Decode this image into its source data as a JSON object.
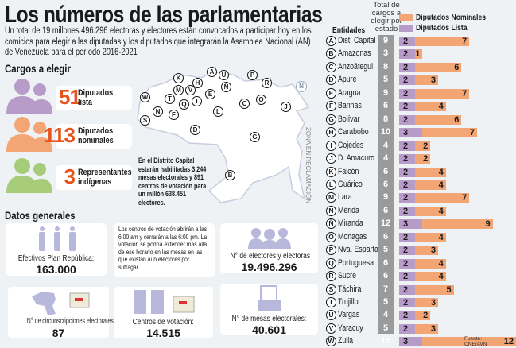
{
  "title": "Los números de las parlamentarias",
  "intro": "Un total de 19 millones 496.296 electoras y electores están convocados a participar hoy en los comicios para elegir a las diputadas y los diputados que integrarán la Asamblea Nacional (AN) de Venezuela para el período 2016-2021",
  "cargos": {
    "heading": "Cargos a elegir",
    "items": [
      {
        "value": "51",
        "label1": "Diputados",
        "label2": "lista",
        "color": "#b79cc9"
      },
      {
        "value": "113",
        "label1": "Diputados",
        "label2": "nominales",
        "color": "#f3a574"
      },
      {
        "value": "3",
        "label1": "Representantes",
        "label2": "indígenas",
        "color": "#a6cc7a"
      }
    ]
  },
  "map": {
    "note": "En el Distrito Capital estarán habilitadas 3.244 mesas electorales y 891 centros de votación para un millón 638.451 electores.",
    "zone": "ZONA EN RECLAMACIÓN",
    "compass": "N"
  },
  "datos": {
    "heading": "Datos generales",
    "efectivos_label": "Efectivos Plan República:",
    "efectivos_value": "163.000",
    "horario": "Los centros de votación abrirán a las 6:00 am y cerrarán a las 6:00 pm. La votación se podría extender más allá de ese horario en las mesas en las que existan aún electores por sufragar.",
    "electores_label": "N° de electores y electoras",
    "electores_value": "19.496.296",
    "circ_label": "N° de circunscripciones electorales:",
    "circ_value": "87",
    "centros_label": "Centros de votación:",
    "centros_value": "14.515",
    "mesas_label": "N° de mesas electorales:",
    "mesas_value": "40.601"
  },
  "table": {
    "entidades_header": "Entidades",
    "total_header": "Total de cargos a elegir por estado",
    "source": "Fuente: CNE/AVN"
  },
  "chart_data": {
    "type": "bar",
    "stacked": true,
    "orientation": "horizontal",
    "legend": [
      "Diputados Nominales",
      "Diputados Lista"
    ],
    "legend_position": "top",
    "colors": {
      "Diputados Lista": "#b79cc9",
      "Diputados Nominales": "#f3a574",
      "total": "#9a9a9a"
    },
    "letters": [
      "A",
      "B",
      "C",
      "D",
      "E",
      "F",
      "G",
      "H",
      "I",
      "J",
      "K",
      "L",
      "M",
      "N",
      "Ñ",
      "O",
      "P",
      "Q",
      "R",
      "S",
      "T",
      "U",
      "V",
      "W"
    ],
    "categories": [
      "Dist. Capital",
      "Amazonas",
      "Anzoátegui",
      "Apure",
      "Aragua",
      "Barinas",
      "Bolívar",
      "Carabobo",
      "Cojedes",
      "D. Amacuro",
      "Falcón",
      "Guárico",
      "Lara",
      "Mérida",
      "Miranda",
      "Monagas",
      "Nva. Esparta",
      "Portuguesa",
      "Sucre",
      "Táchira",
      "Trujillo",
      "Vargas",
      "Yaracuy",
      "Zulia"
    ],
    "totals": [
      9,
      3,
      8,
      5,
      9,
      6,
      8,
      10,
      4,
      4,
      6,
      6,
      9,
      6,
      12,
      6,
      5,
      6,
      6,
      7,
      5,
      4,
      5,
      15
    ],
    "series": [
      {
        "name": "Diputados Lista",
        "values": [
          2,
          2,
          2,
          2,
          2,
          2,
          2,
          3,
          2,
          2,
          2,
          2,
          2,
          2,
          3,
          2,
          2,
          2,
          2,
          2,
          2,
          2,
          2,
          3
        ]
      },
      {
        "name": "Diputados Nominales",
        "values": [
          7,
          1,
          6,
          3,
          7,
          4,
          6,
          7,
          2,
          2,
          4,
          4,
          7,
          4,
          9,
          4,
          3,
          4,
          4,
          5,
          3,
          2,
          3,
          12
        ]
      }
    ]
  }
}
